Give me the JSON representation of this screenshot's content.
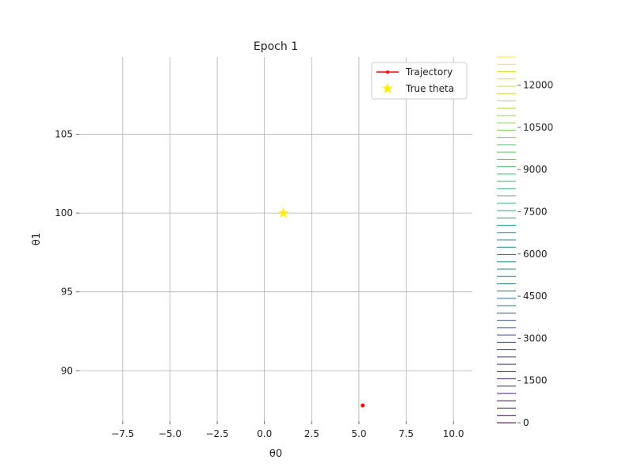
{
  "chart_data": {
    "type": "contour",
    "title": "Epoch 1",
    "xlabel": "θ0",
    "ylabel": "θ1",
    "xlim": [
      -9.8,
      11.0
    ],
    "ylim": [
      86.8,
      109.9
    ],
    "x_ticks": [
      -7.5,
      -5.0,
      -2.5,
      0.0,
      2.5,
      5.0,
      7.5,
      10.0
    ],
    "x_tick_labels": [
      "−7.5",
      "−5.0",
      "−2.5",
      "0.0",
      "2.5",
      "5.0",
      "7.5",
      "10.0"
    ],
    "y_ticks": [
      90,
      95,
      100,
      105
    ],
    "y_tick_labels": [
      "90",
      "95",
      "100",
      "105"
    ],
    "contour_extent_y": [
      90,
      109.9
    ],
    "contour_min_level": 0,
    "contour_max_level": 13000,
    "contour_level_count": 50,
    "colormap": "viridis",
    "colormap_stops": [
      "#440154",
      "#3b528b",
      "#21918c",
      "#5ec962",
      "#fde725"
    ],
    "colorbar": {
      "ticks": [
        0,
        1500,
        3000,
        4500,
        6000,
        7500,
        9000,
        10500,
        12000
      ],
      "tick_labels": [
        "0",
        "1500",
        "3000",
        "4500",
        "6000",
        "7500",
        "9000",
        "10500",
        "12000"
      ]
    },
    "grid": true,
    "legend_position": "top-right",
    "legend": [
      {
        "label": "Trajectory",
        "marker": "line-dot",
        "color": "#ff0000"
      },
      {
        "label": "True theta",
        "marker": "star",
        "color": "#ffee00"
      }
    ],
    "trajectory": {
      "name": "Trajectory",
      "color": "#ff0000",
      "points": [
        {
          "x": 5.2,
          "y": 87.8
        }
      ]
    },
    "true_theta": {
      "name": "True theta",
      "color": "#ffee00",
      "x": 1.0,
      "y": 100.0
    }
  }
}
